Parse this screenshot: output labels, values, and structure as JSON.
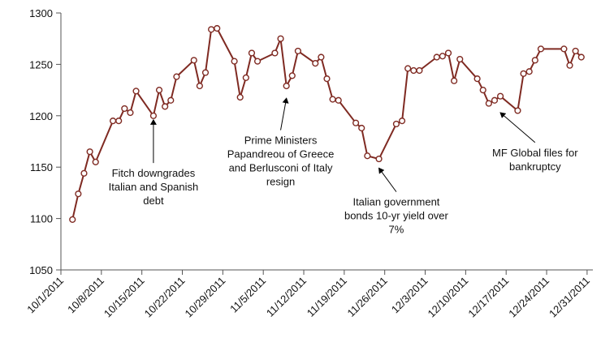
{
  "chart_data": {
    "type": "line",
    "title": "",
    "xlabel": "",
    "ylabel": "",
    "ylim": [
      1050,
      1300
    ],
    "yticks": [
      1050,
      1100,
      1150,
      1200,
      1250,
      1300
    ],
    "xlim": [
      "2011-10-01",
      "2012-01-01"
    ],
    "xtick_labels": [
      "10/1/2011",
      "10/8/2011",
      "10/15/2011",
      "10/22/2011",
      "10/29/2011",
      "11/5/2011",
      "11/12/2011",
      "11/19/2011",
      "11/26/2011",
      "12/3/2011",
      "12/10/2011",
      "12/17/2011",
      "12/24/2011",
      "12/31/2011"
    ],
    "grid": false,
    "legend": "none",
    "line_color": "#7f2a22",
    "series": [
      {
        "points": [
          {
            "x": "2011-10-03",
            "y": 1099
          },
          {
            "x": "2011-10-04",
            "y": 1124
          },
          {
            "x": "2011-10-05",
            "y": 1144
          },
          {
            "x": "2011-10-06",
            "y": 1165
          },
          {
            "x": "2011-10-07",
            "y": 1155
          },
          {
            "x": "2011-10-10",
            "y": 1195
          },
          {
            "x": "2011-10-11",
            "y": 1195
          },
          {
            "x": "2011-10-12",
            "y": 1207
          },
          {
            "x": "2011-10-13",
            "y": 1203
          },
          {
            "x": "2011-10-14",
            "y": 1224
          },
          {
            "x": "2011-10-17",
            "y": 1200
          },
          {
            "x": "2011-10-18",
            "y": 1225
          },
          {
            "x": "2011-10-19",
            "y": 1209
          },
          {
            "x": "2011-10-20",
            "y": 1215
          },
          {
            "x": "2011-10-21",
            "y": 1238
          },
          {
            "x": "2011-10-24",
            "y": 1254
          },
          {
            "x": "2011-10-25",
            "y": 1229
          },
          {
            "x": "2011-10-26",
            "y": 1242
          },
          {
            "x": "2011-10-27",
            "y": 1284
          },
          {
            "x": "2011-10-28",
            "y": 1285
          },
          {
            "x": "2011-10-31",
            "y": 1253
          },
          {
            "x": "2011-11-01",
            "y": 1218
          },
          {
            "x": "2011-11-02",
            "y": 1237
          },
          {
            "x": "2011-11-03",
            "y": 1261
          },
          {
            "x": "2011-11-04",
            "y": 1253
          },
          {
            "x": "2011-11-07",
            "y": 1261
          },
          {
            "x": "2011-11-08",
            "y": 1275
          },
          {
            "x": "2011-11-09",
            "y": 1229
          },
          {
            "x": "2011-11-10",
            "y": 1239
          },
          {
            "x": "2011-11-11",
            "y": 1263
          },
          {
            "x": "2011-11-14",
            "y": 1251
          },
          {
            "x": "2011-11-15",
            "y": 1257
          },
          {
            "x": "2011-11-16",
            "y": 1236
          },
          {
            "x": "2011-11-17",
            "y": 1216
          },
          {
            "x": "2011-11-18",
            "y": 1215
          },
          {
            "x": "2011-11-21",
            "y": 1193
          },
          {
            "x": "2011-11-22",
            "y": 1188
          },
          {
            "x": "2011-11-23",
            "y": 1161
          },
          {
            "x": "2011-11-25",
            "y": 1158
          },
          {
            "x": "2011-11-28",
            "y": 1192
          },
          {
            "x": "2011-11-29",
            "y": 1195
          },
          {
            "x": "2011-11-30",
            "y": 1246
          },
          {
            "x": "2011-12-01",
            "y": 1244
          },
          {
            "x": "2011-12-02",
            "y": 1244
          },
          {
            "x": "2011-12-05",
            "y": 1257
          },
          {
            "x": "2011-12-06",
            "y": 1258
          },
          {
            "x": "2011-12-07",
            "y": 1261
          },
          {
            "x": "2011-12-08",
            "y": 1234
          },
          {
            "x": "2011-12-09",
            "y": 1255
          },
          {
            "x": "2011-12-12",
            "y": 1236
          },
          {
            "x": "2011-12-13",
            "y": 1225
          },
          {
            "x": "2011-12-14",
            "y": 1212
          },
          {
            "x": "2011-12-15",
            "y": 1215
          },
          {
            "x": "2011-12-16",
            "y": 1219
          },
          {
            "x": "2011-12-19",
            "y": 1205
          },
          {
            "x": "2011-12-20",
            "y": 1241
          },
          {
            "x": "2011-12-21",
            "y": 1243
          },
          {
            "x": "2011-12-22",
            "y": 1254
          },
          {
            "x": "2011-12-23",
            "y": 1265
          },
          {
            "x": "2011-12-27",
            "y": 1265
          },
          {
            "x": "2011-12-28",
            "y": 1249
          },
          {
            "x": "2011-12-29",
            "y": 1263
          },
          {
            "x": "2011-12-30",
            "y": 1257
          }
        ]
      }
    ],
    "annotations": [
      {
        "lines": [
          "Fitch downgrades",
          "Italian and Spanish",
          "debt"
        ],
        "arrow_from": {
          "x": "2011-10-17",
          "y": 1154
        },
        "arrow_to": {
          "x": "2011-10-17",
          "y": 1196
        }
      },
      {
        "lines": [
          "Prime Ministers",
          "Papandreou of Greece",
          "and Berlusconi of Italy",
          "resign"
        ],
        "arrow_from": {
          "x": "2011-11-08",
          "y": 1186
        },
        "arrow_to": {
          "x": "2011-11-09",
          "y": 1217
        }
      },
      {
        "lines": [
          "Italian government",
          "bonds 10-yr yield over",
          "7%"
        ],
        "arrow_from": {
          "x": "2011-11-28",
          "y": 1126
        },
        "arrow_to": {
          "x": "2011-11-25",
          "y": 1149
        }
      },
      {
        "lines": [
          "MF Global files for",
          "bankruptcy"
        ],
        "arrow_from": {
          "x": "2011-12-22",
          "y": 1174
        },
        "arrow_to": {
          "x": "2011-12-16",
          "y": 1203
        }
      }
    ]
  }
}
